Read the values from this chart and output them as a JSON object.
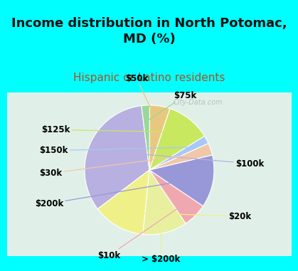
{
  "title": "Income distribution in North Potomac,\nMD (%)",
  "subtitle": "Hispanic or Latino residents",
  "title_color": "#111111",
  "subtitle_color": "#b05020",
  "background_top": "#00ffff",
  "background_chart_top": "#e0f0e8",
  "background_chart_bottom": "#c8ece0",
  "watermark": "City-Data.com",
  "slices": [
    {
      "label": "$100k",
      "value": 33,
      "color": "#b8b0e0"
    },
    {
      "label": "$20k",
      "value": 13,
      "color": "#f0f088"
    },
    {
      "label": "> $200k",
      "value": 11,
      "color": "#e8f0a0"
    },
    {
      "label": "$10k",
      "value": 6,
      "color": "#f0a8b0"
    },
    {
      "label": "$200k",
      "value": 13,
      "color": "#9898d8"
    },
    {
      "label": "$30k",
      "value": 3,
      "color": "#f0c8a8"
    },
    {
      "label": "$150k",
      "value": 2,
      "color": "#a8c8f8"
    },
    {
      "label": "$125k",
      "value": 11,
      "color": "#c8e860"
    },
    {
      "label": "$50k",
      "value": 5,
      "color": "#e8c880"
    },
    {
      "label": "$75k",
      "value": 2,
      "color": "#98d898"
    }
  ],
  "label_fontsize": 8.5,
  "title_fontsize": 13,
  "subtitle_fontsize": 11,
  "startangle": 97
}
